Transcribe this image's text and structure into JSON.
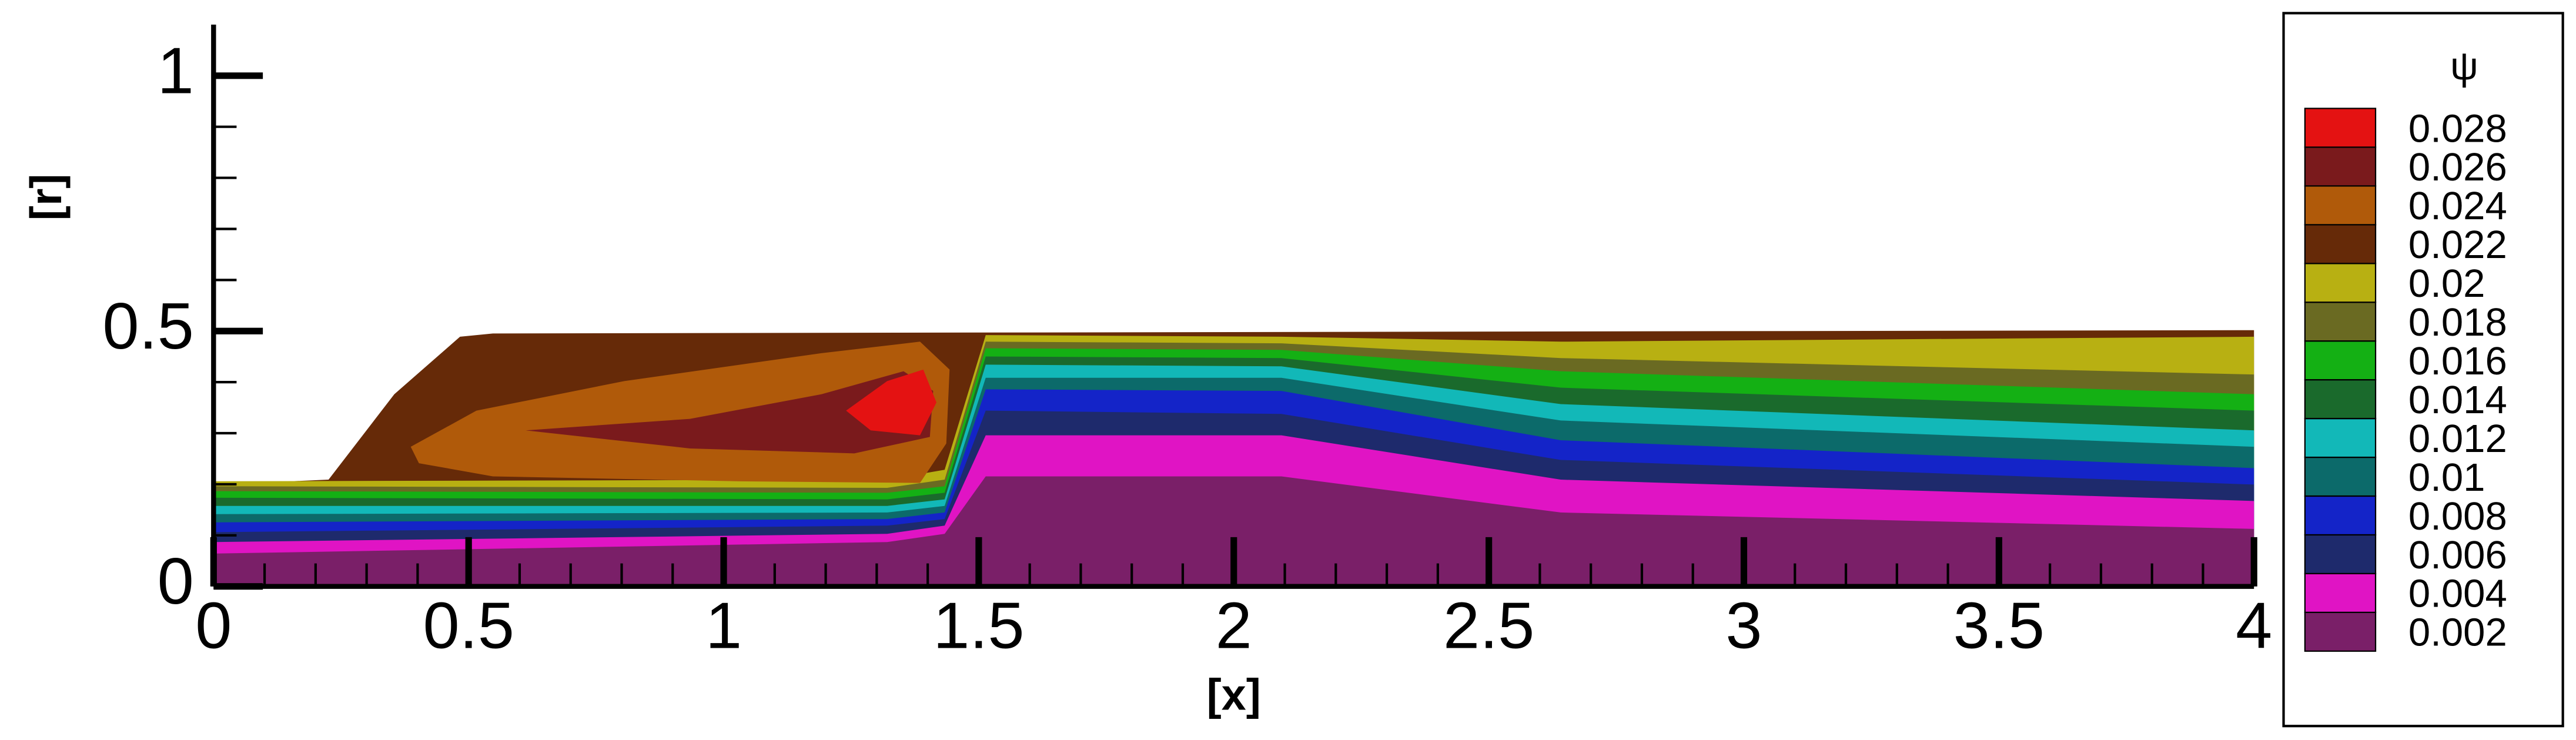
{
  "chart_data": {
    "type": "contour",
    "xlabel": "[x]",
    "ylabel": "[r]",
    "xlim": [
      0,
      4
    ],
    "ylim": [
      0,
      1.1
    ],
    "xticks": [
      0,
      0.5,
      1,
      1.5,
      2,
      2.5,
      3,
      3.5,
      4
    ],
    "yticks": [
      0,
      0.5,
      1
    ],
    "legend_title": "ψ",
    "levels": [
      0.002,
      0.004,
      0.006,
      0.008,
      0.01,
      0.012,
      0.014,
      0.016,
      0.018,
      0.02,
      0.022,
      0.024,
      0.026,
      0.028
    ],
    "colors": [
      "#7a1f68",
      "#e014c4",
      "#1e2a6c",
      "#1424c8",
      "#0c6a6a",
      "#12b8b8",
      "#1a6a2c",
      "#14b014",
      "#6a6a22",
      "#b8b012",
      "#662a08",
      "#b05a0a",
      "#7a1a1c",
      "#e41212"
    ]
  }
}
